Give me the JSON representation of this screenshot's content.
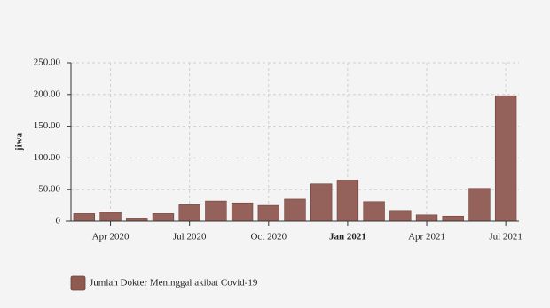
{
  "chart_data": {
    "type": "bar",
    "y_label": "jiwa",
    "categories": [
      null,
      "Apr 2020",
      null,
      null,
      "Jul 2020",
      null,
      null,
      "Oct 2020",
      null,
      null,
      "Jan 2021",
      null,
      null,
      "Apr 2021",
      null,
      null,
      "Jul 2021"
    ],
    "series": [
      {
        "name": "Jumlah Dokter Meninggal akibat Covid-19",
        "color": "#8f5a52",
        "values": [
          12,
          14,
          5,
          12,
          26,
          32,
          29,
          25,
          35,
          59,
          65,
          31,
          17,
          10,
          8,
          52,
          198
        ]
      }
    ],
    "ylim": [
      0,
      250
    ],
    "yticks": [
      0,
      {
        "value": 50,
        "label": "50.00"
      },
      {
        "value": 100,
        "label": "100.00"
      },
      {
        "value": 150,
        "label": "150.00"
      },
      {
        "value": 200,
        "label": "200.00"
      },
      {
        "value": 250,
        "label": "250.00"
      }
    ],
    "grid": true,
    "legend": "bottom-left"
  }
}
